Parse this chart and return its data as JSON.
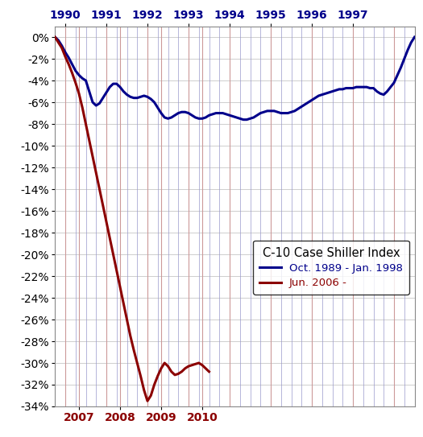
{
  "title": "C-10 Case Shiller Index",
  "legend_line1": "Oct. 1989 - Jan. 1998",
  "legend_line2": "Jun. 2006 -",
  "blue_color": "#00008B",
  "red_color": "#8B0000",
  "grid_blue": "#9999cc",
  "grid_red": "#cc9999",
  "background": "#ffffff",
  "ylim": [
    -34,
    1
  ],
  "blue_series": [
    0.0,
    -0.3,
    -0.8,
    -1.4,
    -1.9,
    -2.5,
    -3.1,
    -3.5,
    -3.8,
    -4.0,
    -5.0,
    -6.0,
    -6.3,
    -6.1,
    -5.6,
    -5.1,
    -4.6,
    -4.3,
    -4.3,
    -4.6,
    -5.0,
    -5.3,
    -5.5,
    -5.6,
    -5.6,
    -5.5,
    -5.4,
    -5.5,
    -5.7,
    -6.0,
    -6.5,
    -7.0,
    -7.4,
    -7.5,
    -7.4,
    -7.2,
    -7.0,
    -6.9,
    -6.9,
    -7.0,
    -7.2,
    -7.4,
    -7.5,
    -7.5,
    -7.4,
    -7.2,
    -7.1,
    -7.0,
    -7.0,
    -7.0,
    -7.1,
    -7.2,
    -7.3,
    -7.4,
    -7.5,
    -7.6,
    -7.6,
    -7.5,
    -7.4,
    -7.2,
    -7.0,
    -6.9,
    -6.8,
    -6.8,
    -6.8,
    -6.9,
    -7.0,
    -7.0,
    -7.0,
    -6.9,
    -6.8,
    -6.6,
    -6.4,
    -6.2,
    -6.0,
    -5.8,
    -5.6,
    -5.4,
    -5.3,
    -5.2,
    -5.1,
    -5.0,
    -4.9,
    -4.8,
    -4.8,
    -4.7,
    -4.7,
    -4.7,
    -4.6,
    -4.6,
    -4.6,
    -4.6,
    -4.7,
    -4.7,
    -5.0,
    -5.2,
    -5.3,
    -5.0,
    -4.6,
    -4.2,
    -3.5,
    -2.8,
    -2.0,
    -1.2,
    -0.5,
    0.0
  ],
  "red_series": [
    0.0,
    -0.5,
    -1.0,
    -1.8,
    -2.5,
    -3.3,
    -4.2,
    -5.2,
    -6.5,
    -8.0,
    -9.5,
    -11.0,
    -12.5,
    -14.0,
    -15.5,
    -17.0,
    -18.5,
    -20.0,
    -21.5,
    -23.0,
    -24.5,
    -26.0,
    -27.5,
    -28.8,
    -30.0,
    -31.2,
    -32.5,
    -33.5,
    -33.0,
    -32.0,
    -31.2,
    -30.5,
    -30.0,
    -30.3,
    -30.8,
    -31.1,
    -31.0,
    -30.8,
    -30.5,
    -30.3,
    -30.2,
    -30.1,
    -30.0,
    -30.2,
    -30.5,
    -30.8
  ],
  "top_x_labels": [
    "1990",
    "1991",
    "1992",
    "1993",
    "1994",
    "1995",
    "1996",
    "1997"
  ],
  "bot_x_labels": [
    "2007",
    "2008",
    "2009",
    "2010"
  ]
}
